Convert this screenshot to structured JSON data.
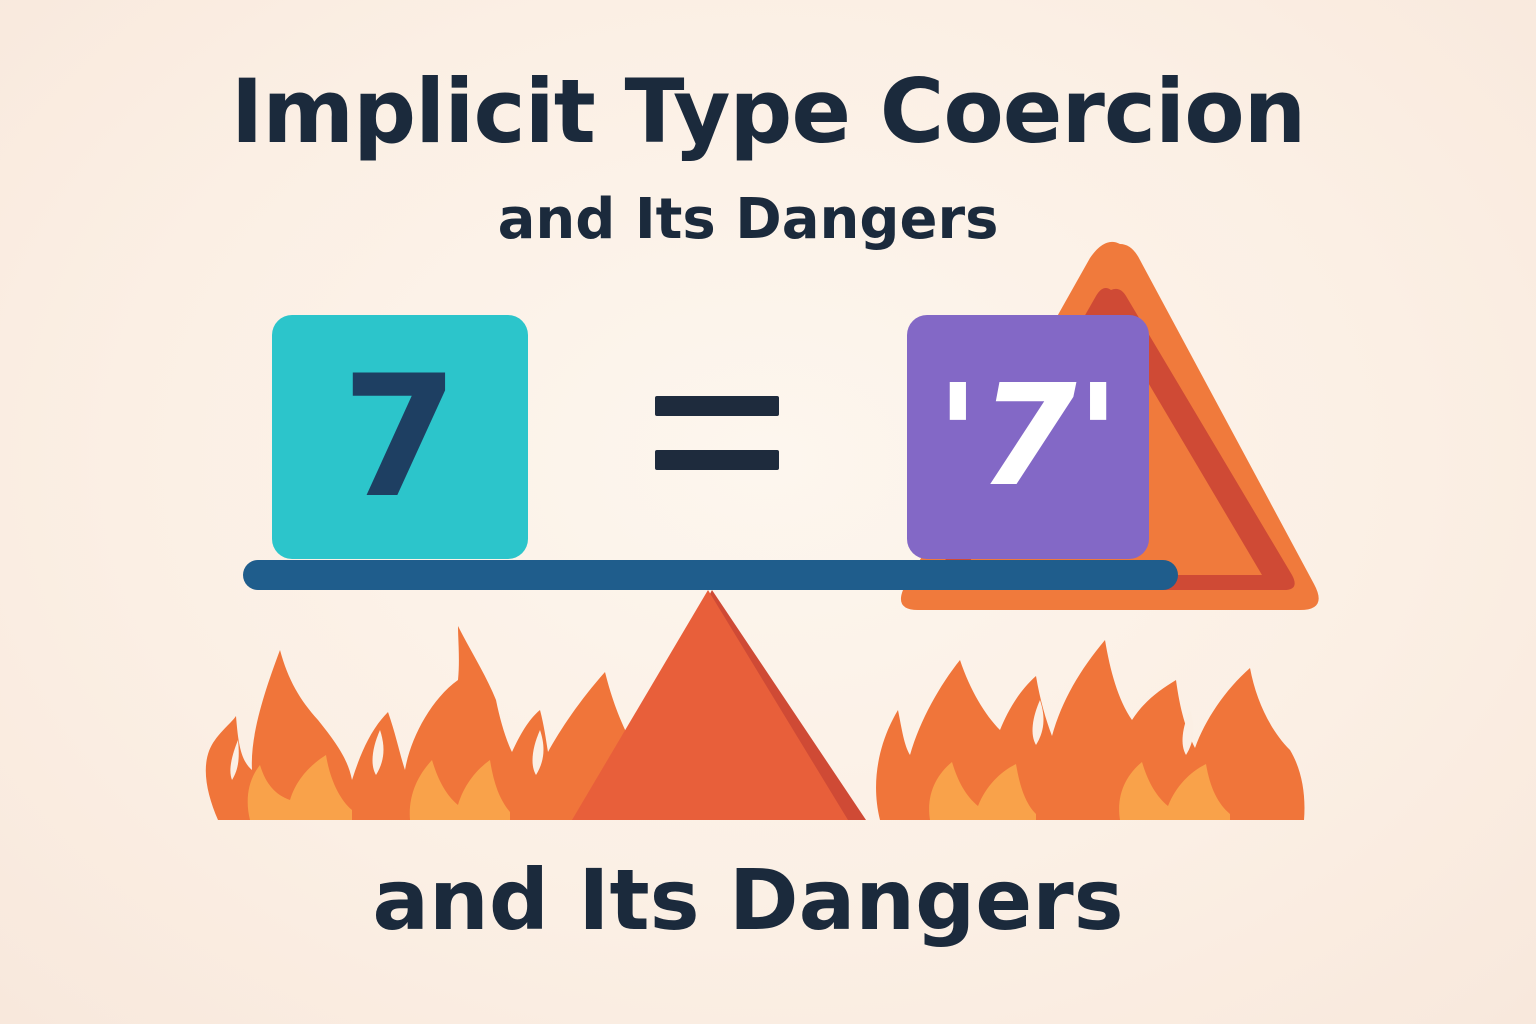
{
  "title": "Implicit Type Coercion",
  "subtitle": "and Its Dangers",
  "bottom_caption": "and Its Dangers",
  "left_value": "7",
  "right_value": "'7'",
  "operator": "equals",
  "icons": [
    "warning-triangle-icon",
    "fire-icon",
    "fulcrum-triangle-icon",
    "equals-icon"
  ],
  "colors": {
    "background": "#fbefe4",
    "text": "#1b2a3c",
    "number_box": "#2cc5cb",
    "number_text": "#1e3f62",
    "string_box": "#8368c6",
    "string_text": "#ffffff",
    "beam": "#1f5d8c",
    "warning_orange": "#f07a3c",
    "warning_red": "#cf4a35",
    "fire_orange": "#f0753a",
    "fire_light": "#f9a24a"
  }
}
